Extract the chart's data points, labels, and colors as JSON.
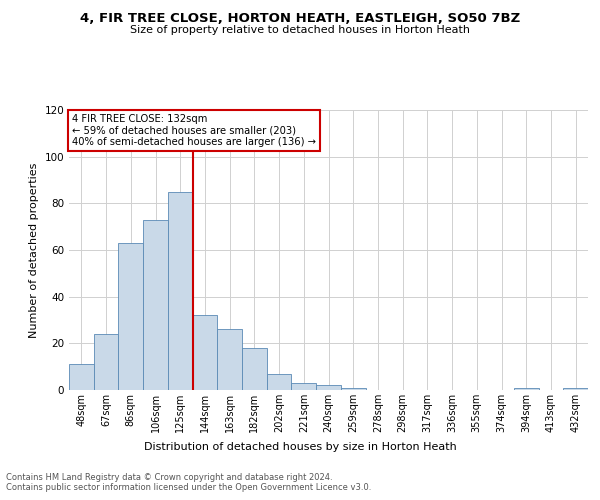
{
  "title_line1": "4, FIR TREE CLOSE, HORTON HEATH, EASTLEIGH, SO50 7BZ",
  "title_line2": "Size of property relative to detached houses in Horton Heath",
  "xlabel": "Distribution of detached houses by size in Horton Heath",
  "ylabel": "Number of detached properties",
  "bar_labels": [
    "48sqm",
    "67sqm",
    "86sqm",
    "106sqm",
    "125sqm",
    "144sqm",
    "163sqm",
    "182sqm",
    "202sqm",
    "221sqm",
    "240sqm",
    "259sqm",
    "278sqm",
    "298sqm",
    "317sqm",
    "336sqm",
    "355sqm",
    "374sqm",
    "394sqm",
    "413sqm",
    "432sqm"
  ],
  "bar_values": [
    11,
    24,
    63,
    73,
    85,
    32,
    26,
    18,
    7,
    3,
    2,
    1,
    0,
    0,
    0,
    0,
    0,
    0,
    1,
    0,
    1
  ],
  "bar_color": "#c9d9e8",
  "bar_edge_color": "#5a8ab5",
  "red_line_color": "#cc0000",
  "annotation_line1": "4 FIR TREE CLOSE: 132sqm",
  "annotation_line2": "← 59% of detached houses are smaller (203)",
  "annotation_line3": "40% of semi-detached houses are larger (136) →",
  "annotation_box_color": "#ffffff",
  "annotation_box_edge": "#cc0000",
  "ylim": [
    0,
    120
  ],
  "yticks": [
    0,
    20,
    40,
    60,
    80,
    100,
    120
  ],
  "grid_color": "#d0d0d0",
  "footer_line1": "Contains HM Land Registry data © Crown copyright and database right 2024.",
  "footer_line2": "Contains public sector information licensed under the Open Government Licence v3.0.",
  "red_line_bin": 4
}
